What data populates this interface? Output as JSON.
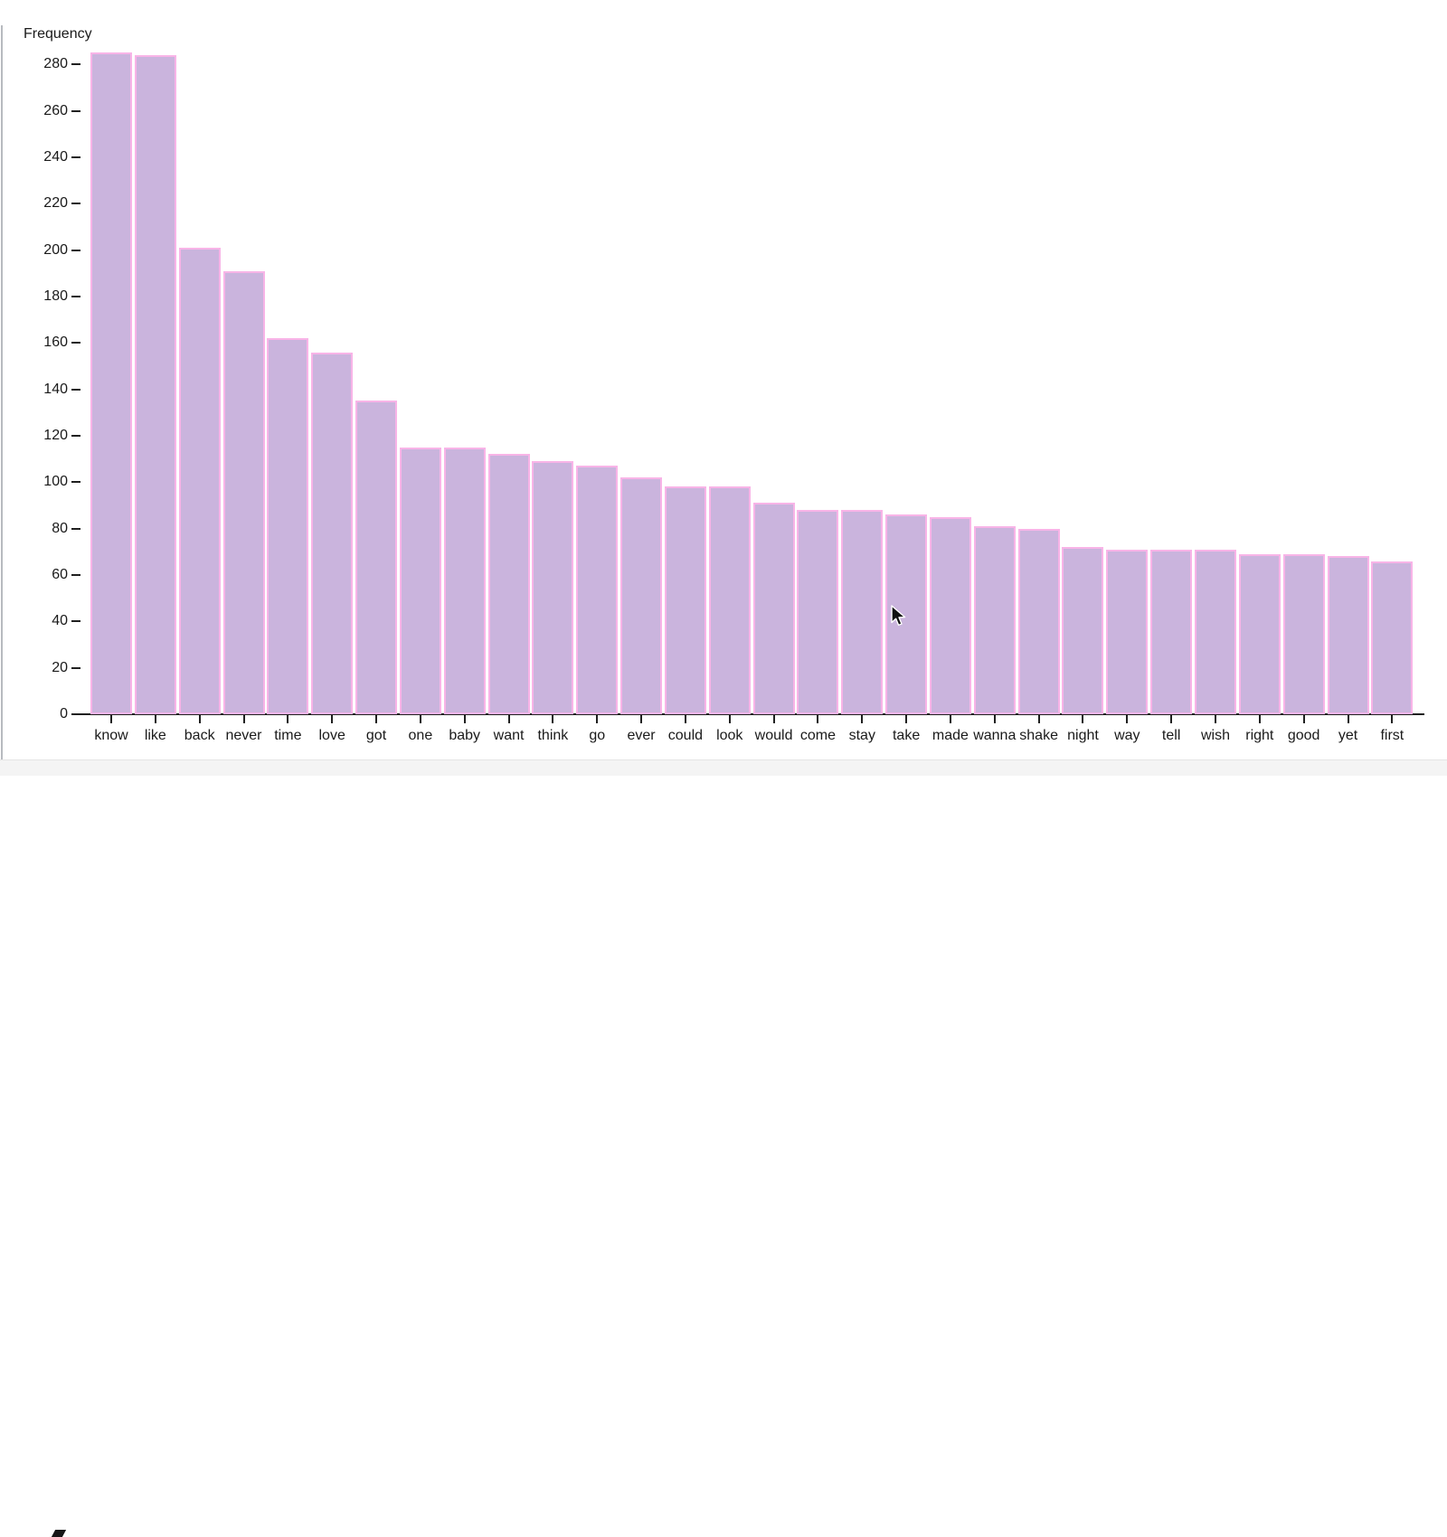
{
  "ylabel": "Frequency",
  "chart_data": {
    "type": "bar",
    "title": "",
    "xlabel": "",
    "ylabel": "Frequency",
    "categories": [
      "know",
      "like",
      "back",
      "never",
      "time",
      "love",
      "got",
      "one",
      "baby",
      "want",
      "think",
      "go",
      "ever",
      "could",
      "look",
      "would",
      "come",
      "stay",
      "take",
      "made",
      "wanna",
      "shake",
      "night",
      "way",
      "tell",
      "wish",
      "right",
      "good",
      "yet",
      "first"
    ],
    "values": [
      285,
      284,
      201,
      191,
      162,
      156,
      135,
      115,
      115,
      112,
      109,
      107,
      102,
      98,
      98,
      91,
      88,
      88,
      86,
      85,
      81,
      80,
      72,
      71,
      71,
      71,
      69,
      69,
      68,
      66
    ],
    "ylim": [
      0,
      290
    ],
    "yticks": [
      0,
      20,
      40,
      60,
      80,
      100,
      120,
      140,
      160,
      180,
      200,
      220,
      240,
      260,
      280
    ],
    "grid": false,
    "legend": null,
    "colors": {
      "bar_fill": "#cab4dd",
      "bar_stroke": "#f8b4e7",
      "axis": "#1f1f1f",
      "text": "#1a1a1a"
    }
  }
}
